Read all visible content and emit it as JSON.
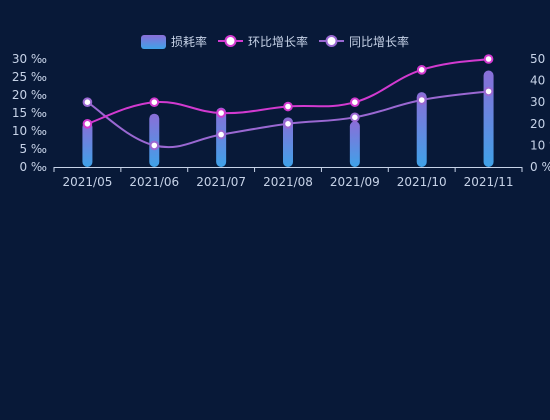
{
  "chart_data": {
    "type": "bar",
    "categories": [
      "2021/05",
      "2021/06",
      "2021/07",
      "2021/08",
      "2021/09",
      "2021/10",
      "2021/11"
    ],
    "legend": {
      "placement": "top-center"
    },
    "series": [
      {
        "name": "损耗率",
        "type": "bar",
        "axis": "left",
        "values": [
          12.5,
          14.8,
          16.5,
          13.8,
          12.7,
          20.8,
          26.8
        ]
      },
      {
        "name": "环比增长率",
        "type": "line",
        "axis": "right",
        "values": [
          20,
          30,
          25,
          28,
          30,
          45,
          50
        ]
      },
      {
        "name": "同比增长率",
        "type": "line",
        "axis": "right",
        "values": [
          30,
          10,
          15,
          20,
          23,
          31,
          35
        ]
      }
    ],
    "left_axis": {
      "ticks": [
        "0 ‰",
        "5 ‰",
        "10 ‰",
        "15 ‰",
        "20 ‰",
        "25 ‰",
        "30 ‰"
      ],
      "ylim": [
        0,
        30
      ]
    },
    "right_axis": {
      "ticks": [
        "0 %",
        "10 %",
        "20",
        "30",
        "40",
        "50"
      ],
      "ylim": [
        0,
        50
      ]
    },
    "colors": {
      "background": "#081938",
      "axis_text": "#c7d3e8",
      "bar_top": "#8a6ed8",
      "bar_bottom": "#3fa2e8",
      "mom_line": "#d23ad0",
      "yoy_line": "#9a68d2",
      "marker_fill": "#ffffff"
    }
  }
}
